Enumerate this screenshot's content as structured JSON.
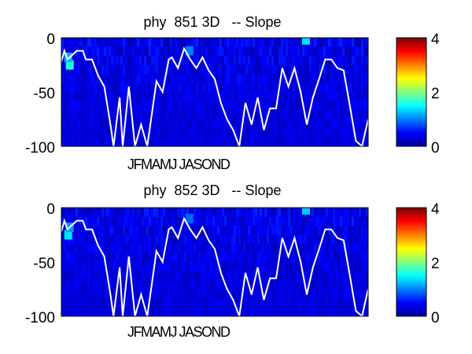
{
  "chart_data": [
    {
      "type": "heatmap",
      "title": "phy  851 3D   -- Slope",
      "ylim": [
        -100,
        0
      ],
      "y_ticks": [
        "0",
        "-50",
        "-100"
      ],
      "x_tick_label": "JFMAMJ JASOND",
      "colorbar": {
        "range": [
          0,
          4
        ],
        "ticks": [
          "4",
          "2",
          "0"
        ],
        "colormap": "jet"
      },
      "background_value": 0.3,
      "hotspots": [
        {
          "x": 0.03,
          "y": -25,
          "value": 1.6
        },
        {
          "x": 0.025,
          "y": -18,
          "value": 1.2
        },
        {
          "x": 0.42,
          "y": -12,
          "value": 1.0
        },
        {
          "x": 0.8,
          "y": -2,
          "value": 1.4
        }
      ],
      "line": {
        "name": "",
        "color": "#ffffff",
        "x": [
          0.0,
          0.01,
          0.02,
          0.05,
          0.07,
          0.08,
          0.1,
          0.12,
          0.14,
          0.16,
          0.17,
          0.19,
          0.2,
          0.22,
          0.24,
          0.26,
          0.28,
          0.3,
          0.31,
          0.33,
          0.34,
          0.35,
          0.36,
          0.38,
          0.4,
          0.42,
          0.44,
          0.46,
          0.48,
          0.5,
          0.52,
          0.54,
          0.56,
          0.58,
          0.6,
          0.62,
          0.64,
          0.66,
          0.68,
          0.7,
          0.72,
          0.74,
          0.76,
          0.78,
          0.8,
          0.82,
          0.84,
          0.86,
          0.88,
          0.9,
          0.92,
          0.94,
          0.96,
          0.98,
          1.0
        ],
        "y": [
          -22,
          -12,
          -20,
          -12,
          -12,
          -20,
          -20,
          -35,
          -45,
          -80,
          -100,
          -55,
          -100,
          -45,
          -100,
          -80,
          -100,
          -60,
          -40,
          -50,
          -35,
          -20,
          -18,
          -28,
          -10,
          -20,
          -28,
          -18,
          -30,
          -38,
          -60,
          -75,
          -85,
          -100,
          -60,
          -80,
          -55,
          -85,
          -65,
          -65,
          -28,
          -45,
          -28,
          -50,
          -80,
          -55,
          -38,
          -20,
          -20,
          -28,
          -30,
          -62,
          -95,
          -100,
          -75
        ]
      }
    },
    {
      "type": "heatmap",
      "title": "phy  852 3D   -- Slope",
      "ylim": [
        -100,
        0
      ],
      "y_ticks": [
        "0",
        "-50",
        "-100"
      ],
      "x_tick_label": "JFMAMJ JASOND",
      "colorbar": {
        "range": [
          0,
          4
        ],
        "ticks": [
          "4",
          "2",
          "0"
        ],
        "colormap": "jet"
      },
      "background_value": 0.3,
      "hotspots": [
        {
          "x": 0.025,
          "y": -25,
          "value": 1.4
        },
        {
          "x": 0.03,
          "y": -18,
          "value": 1.1
        },
        {
          "x": 0.42,
          "y": -10,
          "value": 0.9
        },
        {
          "x": 0.8,
          "y": -2,
          "value": 1.3
        }
      ],
      "line": {
        "name": "",
        "color": "#ffffff",
        "x": [
          0.0,
          0.01,
          0.02,
          0.05,
          0.07,
          0.08,
          0.1,
          0.12,
          0.14,
          0.16,
          0.17,
          0.19,
          0.2,
          0.22,
          0.24,
          0.26,
          0.28,
          0.3,
          0.31,
          0.33,
          0.34,
          0.35,
          0.36,
          0.38,
          0.4,
          0.42,
          0.44,
          0.46,
          0.48,
          0.5,
          0.52,
          0.54,
          0.56,
          0.58,
          0.6,
          0.62,
          0.64,
          0.66,
          0.68,
          0.7,
          0.72,
          0.74,
          0.76,
          0.78,
          0.8,
          0.82,
          0.84,
          0.86,
          0.88,
          0.9,
          0.92,
          0.94,
          0.96,
          0.98,
          1.0
        ],
        "y": [
          -22,
          -12,
          -20,
          -12,
          -12,
          -20,
          -20,
          -35,
          -45,
          -80,
          -100,
          -55,
          -100,
          -45,
          -100,
          -80,
          -100,
          -60,
          -40,
          -50,
          -35,
          -20,
          -18,
          -28,
          -10,
          -20,
          -28,
          -18,
          -30,
          -38,
          -60,
          -75,
          -85,
          -100,
          -60,
          -80,
          -55,
          -85,
          -65,
          -65,
          -28,
          -45,
          -28,
          -50,
          -80,
          -55,
          -38,
          -20,
          -20,
          -28,
          -30,
          -62,
          -95,
          -100,
          -75
        ]
      }
    }
  ]
}
